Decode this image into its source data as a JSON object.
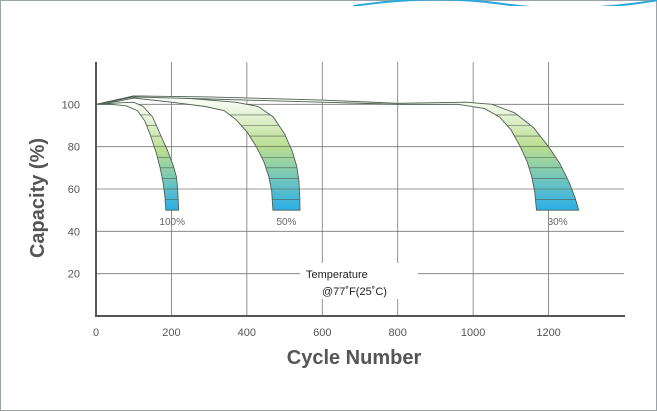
{
  "chart_data": {
    "type": "line",
    "title": "",
    "xlabel": "Cycle Number",
    "ylabel": "Capacity   (%)",
    "xlim": [
      0,
      1400
    ],
    "ylim": [
      0,
      120
    ],
    "xticks": [
      0,
      200,
      400,
      600,
      800,
      1000,
      1200
    ],
    "yticks": [
      20,
      40,
      60,
      80,
      100
    ],
    "grid": true,
    "annotation": [
      "Temperature",
      "@77˚F(25˚C)"
    ],
    "series": [
      {
        "name": "100%",
        "upper": [
          [
            0,
            100
          ],
          [
            40,
            100.5
          ],
          [
            100,
            101
          ],
          [
            125,
            99
          ],
          [
            150,
            94
          ],
          [
            170,
            86
          ],
          [
            190,
            78
          ],
          [
            205,
            71
          ],
          [
            213,
            66
          ],
          [
            216,
            61
          ],
          [
            218,
            55
          ],
          [
            219,
            50
          ]
        ],
        "lower": [
          [
            0,
            100
          ],
          [
            40,
            100
          ],
          [
            80,
            99.3
          ],
          [
            110,
            97
          ],
          [
            130,
            92
          ],
          [
            145,
            85
          ],
          [
            160,
            77
          ],
          [
            170,
            70
          ],
          [
            178,
            63
          ],
          [
            183,
            56
          ],
          [
            185,
            50
          ]
        ]
      },
      {
        "name": "50%",
        "upper": [
          [
            0,
            100
          ],
          [
            60,
            102
          ],
          [
            100,
            104
          ],
          [
            200,
            103.5
          ],
          [
            300,
            102
          ],
          [
            370,
            101
          ],
          [
            430,
            99
          ],
          [
            470,
            94
          ],
          [
            500,
            86
          ],
          [
            520,
            78
          ],
          [
            532,
            71
          ],
          [
            538,
            64
          ],
          [
            540,
            57
          ],
          [
            541,
            50
          ]
        ],
        "lower": [
          [
            0,
            100
          ],
          [
            60,
            101.5
          ],
          [
            100,
            103
          ],
          [
            200,
            101
          ],
          [
            290,
            99
          ],
          [
            340,
            97
          ],
          [
            370,
            93
          ],
          [
            400,
            87
          ],
          [
            425,
            80
          ],
          [
            445,
            73
          ],
          [
            458,
            66
          ],
          [
            466,
            59
          ],
          [
            469,
            50
          ]
        ]
      },
      {
        "name": "30%",
        "upper": [
          [
            0,
            100
          ],
          [
            100,
            104
          ],
          [
            300,
            103.5
          ],
          [
            600,
            102
          ],
          [
            800,
            100.5
          ],
          [
            980,
            101
          ],
          [
            1050,
            100
          ],
          [
            1110,
            96
          ],
          [
            1160,
            89
          ],
          [
            1200,
            80
          ],
          [
            1230,
            72
          ],
          [
            1255,
            63
          ],
          [
            1270,
            56
          ],
          [
            1280,
            50
          ]
        ],
        "lower": [
          [
            0,
            100
          ],
          [
            100,
            103.5
          ],
          [
            300,
            102.5
          ],
          [
            600,
            101
          ],
          [
            800,
            100
          ],
          [
            960,
            100
          ],
          [
            1030,
            98
          ],
          [
            1070,
            94
          ],
          [
            1100,
            88
          ],
          [
            1125,
            80
          ],
          [
            1143,
            73
          ],
          [
            1155,
            66
          ],
          [
            1163,
            59
          ],
          [
            1168,
            50
          ]
        ]
      }
    ]
  },
  "colors": {
    "background": "#ffffff",
    "frame": "#9aa3a8",
    "axis": "#555555",
    "grid": "#777777",
    "curve_stroke": "#4f5f52",
    "band_top": "#ffffff",
    "band_mid": "#b9dd8f",
    "band_bottom": "#2aaee8",
    "accent": "#2aa8d6"
  }
}
